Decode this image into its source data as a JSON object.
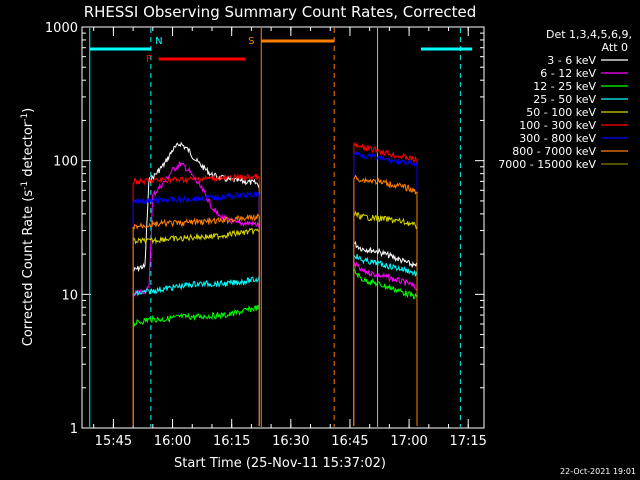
{
  "chart_data": {
    "type": "line",
    "title": "RHESSI Observing Summary Count Rates, Corrected",
    "xlabel": "Start Time (25-Nov-11 15:37:02)",
    "ylabel_main": "Corrected Count Rate (s",
    "ylabel_sup1": "-1",
    "ylabel_mid": " detector",
    "ylabel_sup2": "-1",
    "ylabel_end": ")",
    "yscale": "log",
    "ylim": [
      1,
      1000
    ],
    "xlim": [
      "15:37:02",
      "17:19:00"
    ],
    "x_ticks": [
      "15:45",
      "16:00",
      "16:15",
      "16:30",
      "16:45",
      "17:00",
      "17:15"
    ],
    "y_ticks": [
      "1",
      "10",
      "100",
      "1000"
    ],
    "footer": "22-Oct-2021 19:01",
    "legend": {
      "placement": "right",
      "header1": "Det 1,3,4,5,6,9,",
      "header2": "Att 0",
      "entries": [
        {
          "label": "3 - 6 keV",
          "color": "#ffffff"
        },
        {
          "label": "6 - 12 keV",
          "color": "#ff00ff"
        },
        {
          "label": "12 - 25 keV",
          "color": "#00ff00"
        },
        {
          "label": "25 - 50 keV",
          "color": "#00ffff"
        },
        {
          "label": "50 - 100 keV",
          "color": "#d4d400"
        },
        {
          "label": "100 - 300 keV",
          "color": "#ff0000"
        },
        {
          "label": "300 - 800 keV",
          "color": "#0000ff"
        },
        {
          "label": "800 - 7000 keV",
          "color": "#ff8000"
        },
        {
          "label": "7000 - 15000 keV",
          "color": "#808000"
        }
      ]
    },
    "annotations": [
      {
        "label": "N",
        "color": "#00ffff",
        "start": "15:39:00",
        "end": "15:54:30"
      },
      {
        "label": "F",
        "color": "#ff0000",
        "start": "15:56:30",
        "end": "16:18:30"
      },
      {
        "label": "S",
        "color": "#ff8000",
        "start": "16:22:30",
        "end": "16:41:00"
      },
      {
        "label": "",
        "color": "#00ffff",
        "start": "17:03:00",
        "end": "17:16:00"
      }
    ],
    "vlines": [
      {
        "t": "15:39:00",
        "color": "#00ffff",
        "style": "solid"
      },
      {
        "t": "15:54:30",
        "color": "#00ffff",
        "style": "dashed"
      },
      {
        "t": "16:22:30",
        "color": "#ff8000",
        "style": "solid"
      },
      {
        "t": "16:41:00",
        "color": "#ff8000",
        "style": "dashed"
      },
      {
        "t": "16:52:00",
        "color": "#00ffff",
        "style": "solid"
      },
      {
        "t": "17:13:00",
        "color": "#00ffff",
        "style": "dashed"
      }
    ],
    "series": [
      {
        "name": "3 - 6 keV",
        "color": "#ffffff",
        "segments": [
          {
            "x": [
              "15:50:00",
              "15:52:00",
              "15:53:00",
              "15:54:00",
              "15:55:00",
              "15:58:00",
              "16:00:00",
              "16:02:00",
              "16:04:00",
              "16:06:00",
              "16:08:00",
              "16:10:00",
              "16:14:00",
              "16:18:00",
              "16:21:00",
              "16:22:00"
            ],
            "y": [
              15,
              16,
              16,
              70,
              75,
              95,
              120,
              135,
              120,
              100,
              88,
              78,
              72,
              70,
              68,
              66
            ]
          },
          {
            "x": [
              "16:46:00",
              "16:48:00",
              "16:52:00",
              "16:56:00",
              "17:00:00",
              "17:02:00"
            ],
            "y": [
              24,
              22,
              21,
              19,
              17,
              16
            ]
          }
        ]
      },
      {
        "name": "6 - 12 keV",
        "color": "#ff00ff",
        "segments": [
          {
            "x": [
              "15:50:00",
              "15:54:00",
              "15:55:00",
              "15:58:00",
              "16:00:00",
              "16:02:00",
              "16:04:00",
              "16:06:00",
              "16:08:00",
              "16:10:00",
              "16:12:00",
              "16:16:00",
              "16:20:00",
              "16:22:00"
            ],
            "y": [
              10,
              11,
              55,
              70,
              85,
              95,
              85,
              70,
              58,
              45,
              38,
              34,
              34,
              33
            ]
          },
          {
            "x": [
              "16:46:00",
              "16:48:00",
              "16:52:00",
              "16:56:00",
              "17:00:00",
              "17:02:00"
            ],
            "y": [
              17,
              15,
              14,
              13,
              12,
              11
            ]
          }
        ]
      },
      {
        "name": "12 - 25 keV",
        "color": "#00ff00",
        "segments": [
          {
            "x": [
              "15:50:00",
              "15:54:00",
              "15:58:00",
              "16:02:00",
              "16:06:00",
              "16:10:00",
              "16:14:00",
              "16:18:00",
              "16:22:00"
            ],
            "y": [
              6,
              6.5,
              6.5,
              6.8,
              6.8,
              6.9,
              7,
              7.5,
              8
            ]
          },
          {
            "x": [
              "16:46:00",
              "16:48:00",
              "16:52:00",
              "16:56:00",
              "17:00:00",
              "17:02:00"
            ],
            "y": [
              15,
              13,
              12,
              11,
              10,
              9.5
            ]
          }
        ]
      },
      {
        "name": "25 - 50 keV",
        "color": "#00ffff",
        "segments": [
          {
            "x": [
              "15:50:00",
              "15:54:00",
              "15:58:00",
              "16:02:00",
              "16:06:00",
              "16:10:00",
              "16:14:00",
              "16:18:00",
              "16:22:00"
            ],
            "y": [
              10,
              10.5,
              11,
              11.5,
              12,
              12,
              12,
              12.5,
              13
            ]
          },
          {
            "x": [
              "16:46:00",
              "16:48:00",
              "16:52:00",
              "16:56:00",
              "17:00:00",
              "17:02:00"
            ],
            "y": [
              20,
              18,
              17,
              16,
              15,
              14
            ]
          }
        ]
      },
      {
        "name": "50 - 100 keV",
        "color": "#d4d400",
        "segments": [
          {
            "x": [
              "15:50:00",
              "15:54:00",
              "15:58:00",
              "16:02:00",
              "16:06:00",
              "16:10:00",
              "16:14:00",
              "16:18:00",
              "16:22:00"
            ],
            "y": [
              25,
              25,
              26,
              26,
              27,
              27,
              28,
              29,
              30
            ]
          },
          {
            "x": [
              "16:46:00",
              "16:48:00",
              "16:52:00",
              "16:56:00",
              "17:00:00",
              "17:02:00"
            ],
            "y": [
              40,
              38,
              37,
              36,
              34,
              32
            ]
          }
        ]
      },
      {
        "name": "100 - 300 keV",
        "color": "#ff0000",
        "segments": [
          {
            "x": [
              "15:50:00",
              "15:54:00",
              "15:58:00",
              "16:02:00",
              "16:06:00",
              "16:10:00",
              "16:14:00",
              "16:18:00",
              "16:22:00"
            ],
            "y": [
              70,
              70,
              72,
              72,
              73,
              74,
              74,
              75,
              76
            ]
          },
          {
            "x": [
              "16:46:00",
              "16:48:00",
              "16:52:00",
              "16:56:00",
              "17:00:00",
              "17:02:00"
            ],
            "y": [
              130,
              125,
              120,
              110,
              105,
              100
            ]
          }
        ]
      },
      {
        "name": "300 - 800 keV",
        "color": "#0000ff",
        "segments": [
          {
            "x": [
              "15:50:00",
              "15:54:00",
              "15:58:00",
              "16:02:00",
              "16:06:00",
              "16:10:00",
              "16:14:00",
              "16:18:00",
              "16:22:00"
            ],
            "y": [
              50,
              50,
              51,
              51,
              52,
              53,
              54,
              55,
              56
            ]
          },
          {
            "x": [
              "16:46:00",
              "16:48:00",
              "16:52:00",
              "16:56:00",
              "17:00:00",
              "17:02:00"
            ],
            "y": [
              115,
              110,
              105,
              100,
              95,
              92
            ]
          }
        ]
      },
      {
        "name": "800 - 7000 keV",
        "color": "#ff8000",
        "segments": [
          {
            "x": [
              "15:50:00",
              "15:54:00",
              "15:58:00",
              "16:02:00",
              "16:06:00",
              "16:10:00",
              "16:14:00",
              "16:18:00",
              "16:22:00"
            ],
            "y": [
              32,
              33,
              34,
              34,
              35,
              35,
              36,
              37,
              38
            ]
          },
          {
            "x": [
              "16:46:00",
              "16:48:00",
              "16:52:00",
              "16:56:00",
              "17:00:00",
              "17:02:00"
            ],
            "y": [
              75,
              72,
              70,
              66,
              62,
              58
            ]
          }
        ]
      },
      {
        "name": "7000 - 15000 keV",
        "color": "#808000",
        "segments": []
      }
    ]
  }
}
